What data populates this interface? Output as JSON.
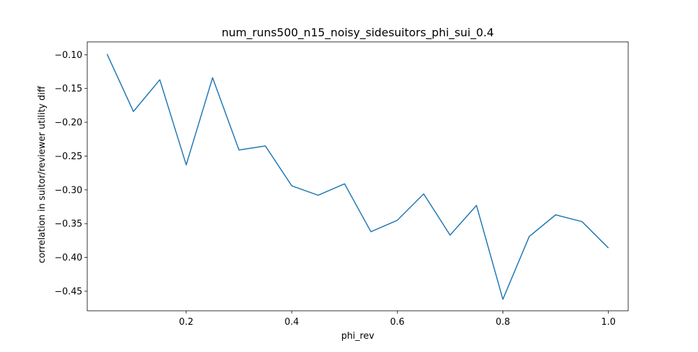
{
  "chart_data": {
    "type": "line",
    "title": "num_runs500_n15_noisy_sidesuitors_phi_sui_0.4",
    "xlabel": "phi_rev",
    "ylabel": "correlation in suitor/reviewer utility diff",
    "xlim": [
      0.0125,
      1.0375
    ],
    "ylim": [
      -0.479,
      -0.081
    ],
    "x_ticks": [
      0.2,
      0.4,
      0.6,
      0.8,
      1.0
    ],
    "x_tick_labels": [
      "0.2",
      "0.4",
      "0.6",
      "0.8",
      "1.0"
    ],
    "y_ticks": [
      -0.1,
      -0.15,
      -0.2,
      -0.25,
      -0.3,
      -0.35,
      -0.4,
      -0.45
    ],
    "y_tick_labels": [
      "−0.10",
      "−0.15",
      "−0.20",
      "−0.25",
      "−0.30",
      "−0.35",
      "−0.40",
      "−0.45"
    ],
    "grid": false,
    "series": [
      {
        "color": "#1f77b4",
        "x": [
          0.05,
          0.1,
          0.15,
          0.2,
          0.25,
          0.3,
          0.35,
          0.4,
          0.45,
          0.5,
          0.55,
          0.6,
          0.65,
          0.7,
          0.75,
          0.8,
          0.85,
          0.9,
          0.95,
          1.0
        ],
        "y": [
          -0.099,
          -0.184,
          -0.137,
          -0.263,
          -0.134,
          -0.241,
          -0.235,
          -0.294,
          -0.308,
          -0.291,
          -0.362,
          -0.345,
          -0.306,
          -0.367,
          -0.323,
          -0.462,
          -0.369,
          -0.337,
          -0.347,
          -0.386
        ]
      }
    ]
  }
}
